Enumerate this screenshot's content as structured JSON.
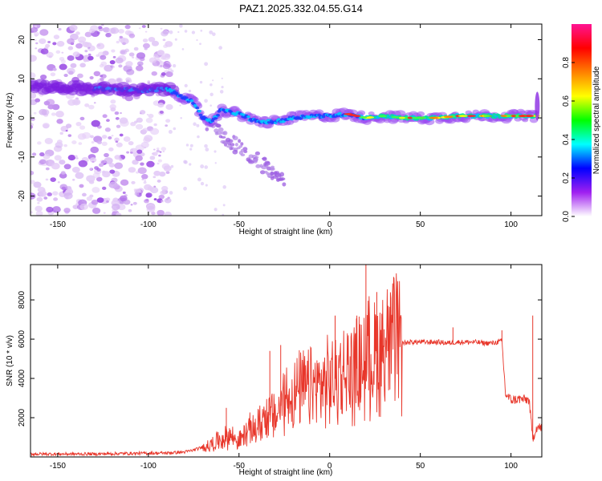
{
  "title": "PAZ1.2025.332.04.55.G14",
  "chart_data": [
    {
      "type": "heatmap",
      "name": "spectrogram",
      "xlabel": "Height of straight line (km)",
      "ylabel": "Frequency (Hz)",
      "xlim": [
        -165,
        117
      ],
      "ylim": [
        -25,
        24
      ],
      "xticks": [
        -150,
        -100,
        -50,
        0,
        50,
        100
      ],
      "xtick_labels": [
        "-150",
        "-100",
        "-50",
        "0",
        "50",
        "100"
      ],
      "yticks": [
        -20,
        -10,
        0,
        10,
        20
      ],
      "ytick_labels": [
        "-20",
        "-10",
        "0",
        "10",
        "20"
      ],
      "main_ridge": {
        "x": [
          -165,
          -130,
          -100,
          -90,
          -80,
          -75,
          -70,
          -65,
          -60,
          -50,
          -40,
          -30,
          -20,
          -10,
          0,
          10,
          20,
          30,
          40,
          50,
          60,
          70,
          80,
          90,
          100,
          110,
          114
        ],
        "y": [
          8,
          7.5,
          7,
          7.5,
          5,
          4,
          0,
          -1,
          2,
          1,
          -1,
          -1,
          0,
          0.5,
          0.5,
          1,
          0,
          0.5,
          0,
          0,
          0,
          0.5,
          0.5,
          0.5,
          0.5,
          0.5,
          0.5
        ]
      },
      "noise_region_km": [
        -165,
        -88
      ],
      "colorbar": {
        "label": "Normalized spectral amplitude",
        "range": [
          0,
          1
        ],
        "ticks": [
          0.0,
          0.2,
          0.4,
          0.6,
          0.8
        ],
        "tick_labels": [
          "0.0",
          "0.2",
          "0.4",
          "0.6",
          "0.8"
        ],
        "colors": [
          "#ffffff",
          "#a020f0",
          "#0000ff",
          "#00ffff",
          "#00ff00",
          "#ffff00",
          "#ff8000",
          "#ff0000",
          "#ff1493"
        ]
      }
    },
    {
      "type": "line",
      "name": "snr",
      "xlabel": "Height of straight line (km)",
      "ylabel": "SNR (10 * v/v)",
      "xlim": [
        -165,
        117
      ],
      "ylim": [
        0,
        9800
      ],
      "xticks": [
        -150,
        -100,
        -50,
        0,
        50,
        100
      ],
      "xtick_labels": [
        "-150",
        "-100",
        "-50",
        "0",
        "50",
        "100"
      ],
      "yticks": [
        2000,
        4000,
        6000,
        8000
      ],
      "ytick_labels": [
        "2000",
        "4000",
        "6000",
        "8000"
      ],
      "color": "#e8362a",
      "x": [
        -165,
        -150,
        -130,
        -110,
        -90,
        -80,
        -75,
        -70,
        -65,
        -60,
        -55,
        -50,
        -45,
        -40,
        -35,
        -30,
        -25,
        -20,
        -15,
        -10,
        -5,
        0,
        5,
        10,
        15,
        20,
        25,
        30,
        35,
        40,
        45,
        50,
        55,
        60,
        65,
        70,
        75,
        80,
        85,
        90,
        95,
        97,
        100,
        105,
        110,
        112,
        114,
        117
      ],
      "y": [
        150,
        150,
        150,
        180,
        200,
        250,
        350,
        500,
        650,
        900,
        1100,
        800,
        1300,
        1500,
        2200,
        2000,
        3000,
        3100,
        3400,
        3500,
        3600,
        3800,
        4100,
        4300,
        4500,
        5000,
        5200,
        5600,
        5800,
        5800,
        5850,
        5850,
        5850,
        5850,
        5800,
        5850,
        5850,
        5850,
        5800,
        5800,
        5900,
        3200,
        2900,
        2950,
        2900,
        900,
        1500,
        1500
      ],
      "spikes": [
        {
          "x": -57,
          "y": 2500
        },
        {
          "x": -33,
          "y": 5400
        },
        {
          "x": -27,
          "y": 5700
        },
        {
          "x": 3,
          "y": 7200
        },
        {
          "x": 15,
          "y": 7200
        },
        {
          "x": 20,
          "y": 9800
        },
        {
          "x": 26,
          "y": 8400
        },
        {
          "x": 30,
          "y": 6500
        },
        {
          "x": 68,
          "y": 6600
        },
        {
          "x": 95,
          "y": 6450
        },
        {
          "x": 112,
          "y": 7200
        }
      ]
    }
  ]
}
